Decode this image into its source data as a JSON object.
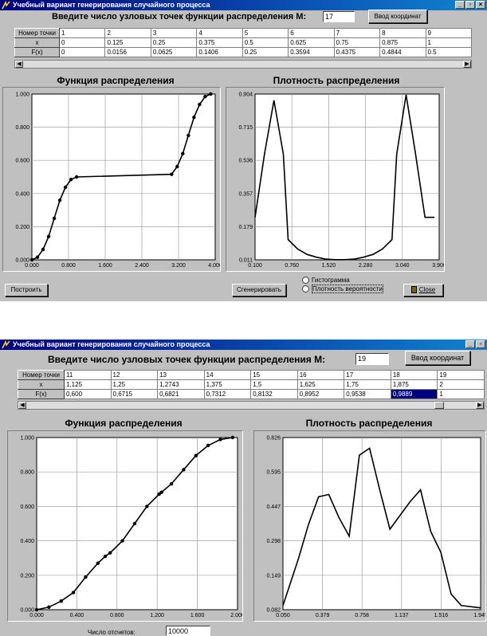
{
  "window1": {
    "title": "Учебный вариант генерирования случайного процесса",
    "prompt": "Введите число узловых точек функции распределения М:",
    "points_value": "17",
    "coords_button": "Ввод координат",
    "table": {
      "headers": [
        "Номер точки",
        "1",
        "2",
        "3",
        "4",
        "5",
        "6",
        "7",
        "8",
        "9"
      ],
      "rows": [
        {
          "label": "x",
          "cells": [
            "0",
            "0.125",
            "0.25",
            "0.375",
            "0.5",
            "0.625",
            "0.75",
            "0.875",
            "1"
          ]
        },
        {
          "label": "F(x)",
          "cells": [
            "0",
            "0.0156",
            "0.0625",
            "0.1406",
            "0.25",
            "0.3594",
            "0.4375",
            "0.4844",
            "0.5"
          ]
        }
      ]
    },
    "left_title": "Функция распределения",
    "right_title": "Плотность распределения",
    "build_button": "Построить",
    "generate_button": "Сгенерировать",
    "radio_histogram": "Гистограмма",
    "radio_density": "Плотность вероятности",
    "close_button": "Close"
  },
  "window2": {
    "title": "Учебный вариант генерирования случайного процесса",
    "prompt": "Введите число узловых точек функции распределения М:",
    "points_value": "19",
    "coords_button": "Ввод координат",
    "table": {
      "headers": [
        "Номер точки",
        "11",
        "12",
        "13",
        "14",
        "15",
        "16",
        "17",
        "18",
        "19"
      ],
      "rows": [
        {
          "label": "x",
          "cells": [
            "1,125",
            "1,25",
            "1,2743",
            "1,375",
            "1,5",
            "1,625",
            "1,75",
            "1,875",
            "2"
          ]
        },
        {
          "label": "F(x)",
          "cells": [
            "0,600",
            "0,6715",
            "0,6821",
            "0,7312",
            "0,8132",
            "0,8952",
            "0,9538",
            "0,9889",
            "1"
          ]
        }
      ]
    },
    "left_title": "Функция распределения",
    "right_title": "Плотность распределения",
    "samples_label": "Число отсчетов:",
    "samples_value": "10000"
  },
  "chart_data": [
    {
      "type": "line",
      "title": "Функция распределения",
      "xlim": [
        0,
        4.1
      ],
      "ylim": [
        0,
        1.0
      ],
      "xticks": [
        "0.000",
        "0.800",
        "1.600",
        "2.400",
        "3.200",
        "4.000"
      ],
      "yticks": [
        "0.000",
        "0.200",
        "0.400",
        "0.600",
        "0.800",
        "1.000"
      ],
      "grid": true,
      "x": [
        0,
        0.125,
        0.25,
        0.375,
        0.5,
        0.625,
        0.75,
        0.875,
        1.0,
        3.125,
        3.25,
        3.375,
        3.5,
        3.625,
        3.75,
        3.875,
        4.0
      ],
      "y": [
        0,
        0.0156,
        0.0625,
        0.1406,
        0.25,
        0.3594,
        0.4375,
        0.4844,
        0.5,
        0.516,
        0.5625,
        0.6406,
        0.75,
        0.8594,
        0.9375,
        0.9844,
        1.0
      ]
    },
    {
      "type": "line",
      "title": "Плотность распределения",
      "xlim": [
        0.1,
        4.0
      ],
      "ylim": [
        0.011,
        0.904
      ],
      "xticks": [
        "0.100",
        "0.760",
        "1.520",
        "2.280",
        "3.040",
        "3.900"
      ],
      "yticks": [
        "0.011",
        "0.179",
        "0.357",
        "0.536",
        "0.715",
        "0.904"
      ],
      "grid": true,
      "x": [
        0.1,
        0.3,
        0.5,
        0.7,
        0.8,
        1.0,
        1.2,
        1.4,
        1.6,
        1.8,
        2.0,
        2.2,
        2.4,
        2.6,
        2.8,
        3.0,
        3.1,
        3.3,
        3.5,
        3.7,
        3.9
      ],
      "y": [
        0.24,
        0.58,
        0.87,
        0.58,
        0.12,
        0.07,
        0.04,
        0.025,
        0.015,
        0.012,
        0.012,
        0.015,
        0.025,
        0.04,
        0.07,
        0.12,
        0.58,
        0.9,
        0.58,
        0.24,
        0.24
      ]
    },
    {
      "type": "line",
      "title": "Функция распределения",
      "xlim": [
        0,
        2.05
      ],
      "ylim": [
        0,
        1.0
      ],
      "xticks": [
        "0.000",
        "0.400",
        "0.800",
        "1.200",
        "1.600",
        "2.000"
      ],
      "yticks": [
        "0.000",
        "0.200",
        "0.400",
        "0.600",
        "0.800",
        "1.000"
      ],
      "grid": true,
      "x": [
        0,
        0.125,
        0.25,
        0.375,
        0.5,
        0.625,
        0.7,
        0.75,
        0.875,
        1.0,
        1.125,
        1.25,
        1.2743,
        1.375,
        1.5,
        1.625,
        1.75,
        1.875,
        2.0
      ],
      "y": [
        0,
        0.015,
        0.05,
        0.1,
        0.19,
        0.27,
        0.31,
        0.33,
        0.4,
        0.5,
        0.6,
        0.6715,
        0.6821,
        0.7312,
        0.8132,
        0.8952,
        0.9538,
        0.9889,
        1.0
      ]
    },
    {
      "type": "line",
      "title": "Плотность распределения",
      "xlim": [
        0.05,
        1.99
      ],
      "ylim": [
        0.082,
        0.826
      ],
      "xticks": [
        "0.050",
        "0.379",
        "0.758",
        "1.137",
        "1.516",
        "1.945"
      ],
      "yticks": [
        "0.082",
        "0.149",
        "0.298",
        "0.447",
        "0.595",
        "0.826"
      ],
      "grid": true,
      "x": [
        0.05,
        0.2,
        0.3,
        0.4,
        0.5,
        0.6,
        0.7,
        0.8,
        0.9,
        1.0,
        1.1,
        1.2,
        1.3,
        1.4,
        1.5,
        1.6,
        1.7,
        1.8,
        1.99
      ],
      "y": [
        0.1,
        0.3,
        0.45,
        0.57,
        0.58,
        0.48,
        0.4,
        0.75,
        0.78,
        0.6,
        0.43,
        0.49,
        0.55,
        0.6,
        0.42,
        0.33,
        0.15,
        0.1,
        0.09
      ]
    }
  ]
}
